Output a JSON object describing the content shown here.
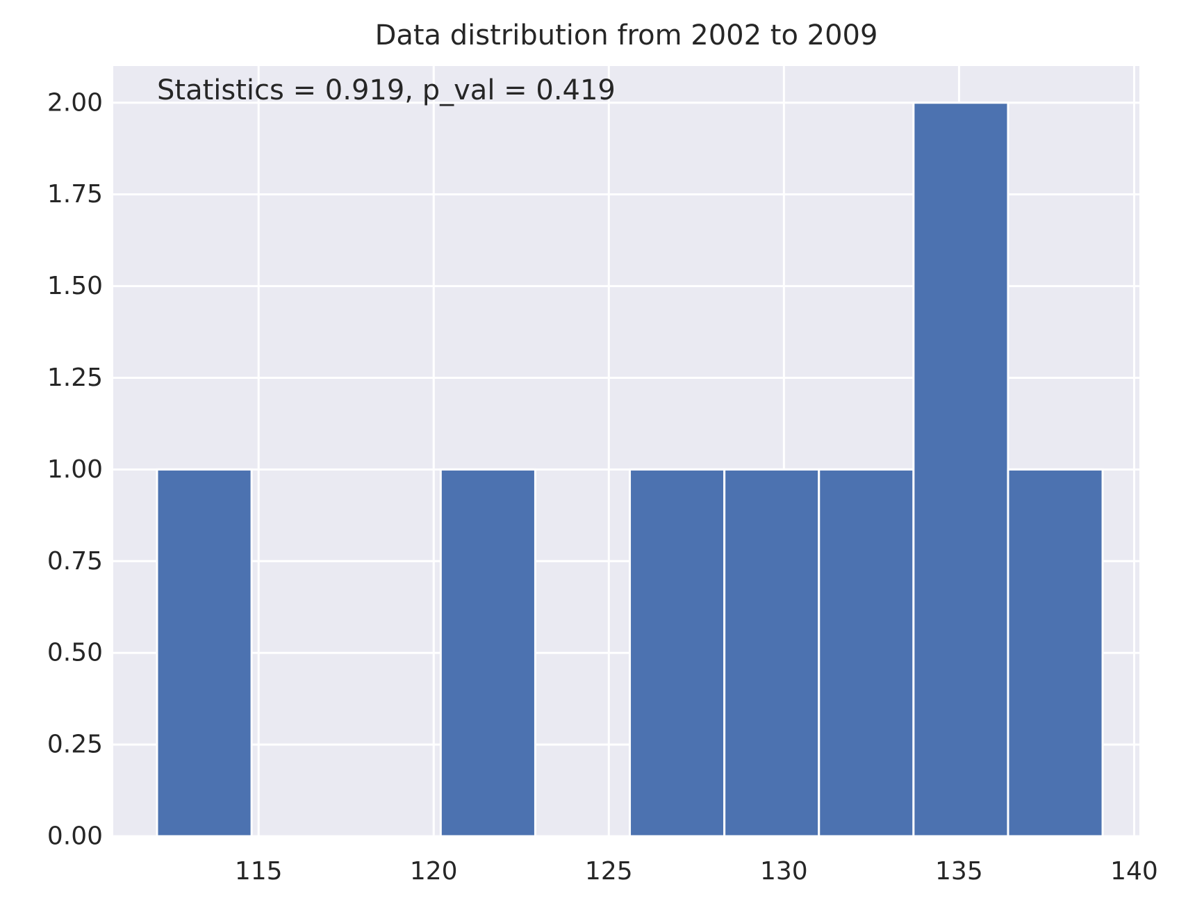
{
  "chart_data": {
    "type": "bar",
    "title": "Data distribution from 2002 to 2009",
    "annotation": "Statistics = 0.919, p_val = 0.419",
    "xlabel": "",
    "ylabel": "",
    "xlim": [
      110.85,
      140.15
    ],
    "ylim": [
      0,
      2.1
    ],
    "x_ticks": [
      115,
      120,
      125,
      130,
      135,
      140
    ],
    "x_tick_labels": [
      "115",
      "120",
      "125",
      "130",
      "135",
      "140"
    ],
    "y_ticks": [
      0,
      0.25,
      0.5,
      0.75,
      1.0,
      1.25,
      1.5,
      1.75,
      2.0
    ],
    "y_tick_labels": [
      "0.00",
      "0.25",
      "0.50",
      "0.75",
      "1.00",
      "1.25",
      "1.50",
      "1.75",
      "2.00"
    ],
    "bins": [
      {
        "start": 112.1,
        "end": 114.8,
        "count": 1
      },
      {
        "start": 114.8,
        "end": 117.5,
        "count": 0
      },
      {
        "start": 117.5,
        "end": 120.2,
        "count": 0
      },
      {
        "start": 120.2,
        "end": 122.9,
        "count": 1
      },
      {
        "start": 122.9,
        "end": 125.6,
        "count": 0
      },
      {
        "start": 125.6,
        "end": 128.3,
        "count": 1
      },
      {
        "start": 128.3,
        "end": 131.0,
        "count": 1
      },
      {
        "start": 131.0,
        "end": 133.7,
        "count": 1
      },
      {
        "start": 133.7,
        "end": 136.4,
        "count": 2
      },
      {
        "start": 136.4,
        "end": 139.1,
        "count": 1
      }
    ],
    "grid": true,
    "colors": {
      "background": "#eaeaf2",
      "bar": "#4c72b0",
      "grid": "#ffffff",
      "text": "#262626"
    }
  }
}
